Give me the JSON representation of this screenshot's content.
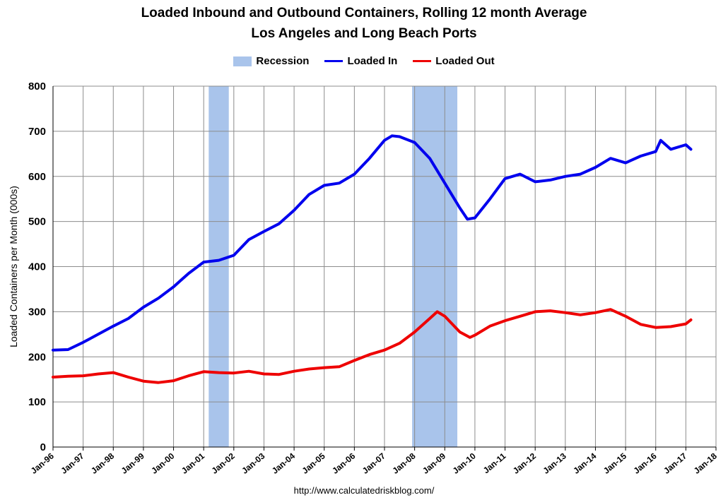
{
  "chart_data": {
    "type": "line",
    "title": "Loaded Inbound and Outbound Containers, Rolling 12 month Average",
    "subtitle": "Los Angeles and Long Beach Ports",
    "xlabel": "",
    "ylabel": "Loaded Containers per Month (000s)",
    "ylim": [
      0,
      800
    ],
    "yticks": [
      0,
      100,
      200,
      300,
      400,
      500,
      600,
      700,
      800
    ],
    "xlim": [
      1996.0,
      2018.0
    ],
    "xticks": [
      "Jan-96",
      "Jan-97",
      "Jan-98",
      "Jan-99",
      "Jan-00",
      "Jan-01",
      "Jan-02",
      "Jan-03",
      "Jan-04",
      "Jan-05",
      "Jan-06",
      "Jan-07",
      "Jan-08",
      "Jan-09",
      "Jan-10",
      "Jan-11",
      "Jan-12",
      "Jan-13",
      "Jan-14",
      "Jan-15",
      "Jan-16",
      "Jan-17",
      "Jan-18"
    ],
    "grid": true,
    "legend_position": "top",
    "recessions": [
      {
        "name": "Recession",
        "start": "Mar-01",
        "end": "Nov-01"
      },
      {
        "name": "Recession",
        "start": "Dec-07",
        "end": "Jun-09"
      }
    ],
    "series": [
      {
        "name": "Loaded In",
        "color": "#0000ee",
        "points": [
          [
            "Jan-96",
            215
          ],
          [
            "Jul-96",
            216
          ],
          [
            "Jan-97",
            232
          ],
          [
            "Jul-97",
            250
          ],
          [
            "Jan-98",
            268
          ],
          [
            "Jul-98",
            285
          ],
          [
            "Jan-99",
            310
          ],
          [
            "Jul-99",
            330
          ],
          [
            "Jan-00",
            355
          ],
          [
            "Jul-00",
            385
          ],
          [
            "Jan-01",
            410
          ],
          [
            "Jul-01",
            414
          ],
          [
            "Jan-02",
            425
          ],
          [
            "Jul-02",
            460
          ],
          [
            "Jan-03",
            478
          ],
          [
            "Jul-03",
            495
          ],
          [
            "Jan-04",
            525
          ],
          [
            "Jul-04",
            560
          ],
          [
            "Jan-05",
            580
          ],
          [
            "Jul-05",
            585
          ],
          [
            "Jan-06",
            605
          ],
          [
            "Jul-06",
            640
          ],
          [
            "Jan-07",
            680
          ],
          [
            "Apr-07",
            690
          ],
          [
            "Jul-07",
            688
          ],
          [
            "Jan-08",
            675
          ],
          [
            "Jul-08",
            640
          ],
          [
            "Jan-09",
            585
          ],
          [
            "Jul-09",
            530
          ],
          [
            "Oct-09",
            505
          ],
          [
            "Jan-10",
            508
          ],
          [
            "Jul-10",
            550
          ],
          [
            "Jan-11",
            595
          ],
          [
            "Jul-11",
            605
          ],
          [
            "Jan-12",
            588
          ],
          [
            "Jul-12",
            592
          ],
          [
            "Jan-13",
            600
          ],
          [
            "Jul-13",
            605
          ],
          [
            "Jan-14",
            620
          ],
          [
            "Jul-14",
            640
          ],
          [
            "Jan-15",
            630
          ],
          [
            "Jul-15",
            645
          ],
          [
            "Jan-16",
            655
          ],
          [
            "Mar-16",
            680
          ],
          [
            "Jul-16",
            660
          ],
          [
            "Jan-17",
            670
          ],
          [
            "Mar-17",
            660
          ]
        ]
      },
      {
        "name": "Loaded Out",
        "color": "#ee0000",
        "points": [
          [
            "Jan-96",
            155
          ],
          [
            "Jul-96",
            157
          ],
          [
            "Jan-97",
            158
          ],
          [
            "Jul-97",
            162
          ],
          [
            "Jan-98",
            165
          ],
          [
            "Jul-98",
            155
          ],
          [
            "Jan-99",
            146
          ],
          [
            "Jul-99",
            143
          ],
          [
            "Jan-00",
            147
          ],
          [
            "Jul-00",
            158
          ],
          [
            "Jan-01",
            167
          ],
          [
            "Jul-01",
            165
          ],
          [
            "Jan-02",
            164
          ],
          [
            "Jul-02",
            168
          ],
          [
            "Jan-03",
            162
          ],
          [
            "Jul-03",
            161
          ],
          [
            "Jan-04",
            168
          ],
          [
            "Jul-04",
            173
          ],
          [
            "Jan-05",
            176
          ],
          [
            "Jul-05",
            178
          ],
          [
            "Jan-06",
            192
          ],
          [
            "Jul-06",
            205
          ],
          [
            "Jan-07",
            215
          ],
          [
            "Jul-07",
            230
          ],
          [
            "Jan-08",
            255
          ],
          [
            "Jul-08",
            285
          ],
          [
            "Oct-08",
            300
          ],
          [
            "Jan-09",
            290
          ],
          [
            "Jul-09",
            255
          ],
          [
            "Nov-09",
            243
          ],
          [
            "Jan-10",
            248
          ],
          [
            "Jul-10",
            268
          ],
          [
            "Jan-11",
            280
          ],
          [
            "Jul-11",
            290
          ],
          [
            "Jan-12",
            300
          ],
          [
            "Jul-12",
            302
          ],
          [
            "Jan-13",
            298
          ],
          [
            "Jul-13",
            293
          ],
          [
            "Jan-14",
            298
          ],
          [
            "Jul-14",
            305
          ],
          [
            "Jan-15",
            290
          ],
          [
            "Jul-15",
            272
          ],
          [
            "Jan-16",
            265
          ],
          [
            "Jul-16",
            267
          ],
          [
            "Jan-17",
            273
          ],
          [
            "Mar-17",
            282
          ]
        ]
      }
    ]
  },
  "legend": {
    "recession_label": "Recession",
    "loaded_in_label": "Loaded In",
    "loaded_out_label": "Loaded Out",
    "recession_color": "#a9c4eb"
  },
  "footer": "http://www.calculatedriskblog.com/"
}
